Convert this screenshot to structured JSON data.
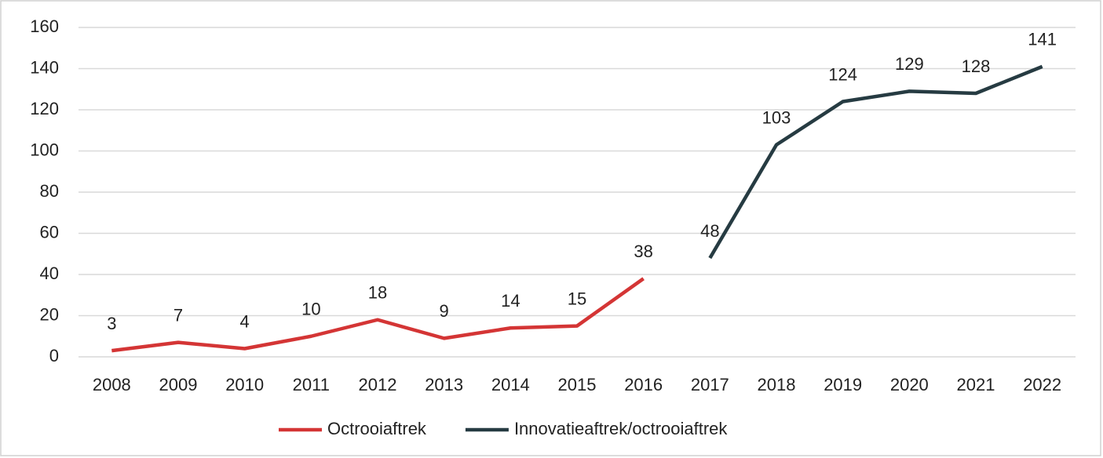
{
  "chart_data": {
    "type": "line",
    "categories": [
      "2008",
      "2009",
      "2010",
      "2011",
      "2012",
      "2013",
      "2014",
      "2015",
      "2016",
      "2017",
      "2018",
      "2019",
      "2020",
      "2021",
      "2022"
    ],
    "series": [
      {
        "name": "Octrooiaftrek",
        "color": "#d43535",
        "values": [
          3,
          7,
          4,
          10,
          18,
          9,
          14,
          15,
          38,
          null,
          null,
          null,
          null,
          null,
          null
        ]
      },
      {
        "name": "Innovatieaftrek/octrooiaftrek",
        "color": "#263b42",
        "values": [
          null,
          null,
          null,
          null,
          null,
          null,
          null,
          null,
          null,
          48,
          103,
          124,
          129,
          128,
          141
        ]
      }
    ],
    "ylim": [
      0,
      160
    ],
    "yticks": [
      0,
      20,
      40,
      60,
      80,
      100,
      120,
      140,
      160
    ],
    "grid": true,
    "legend": "bottom"
  }
}
